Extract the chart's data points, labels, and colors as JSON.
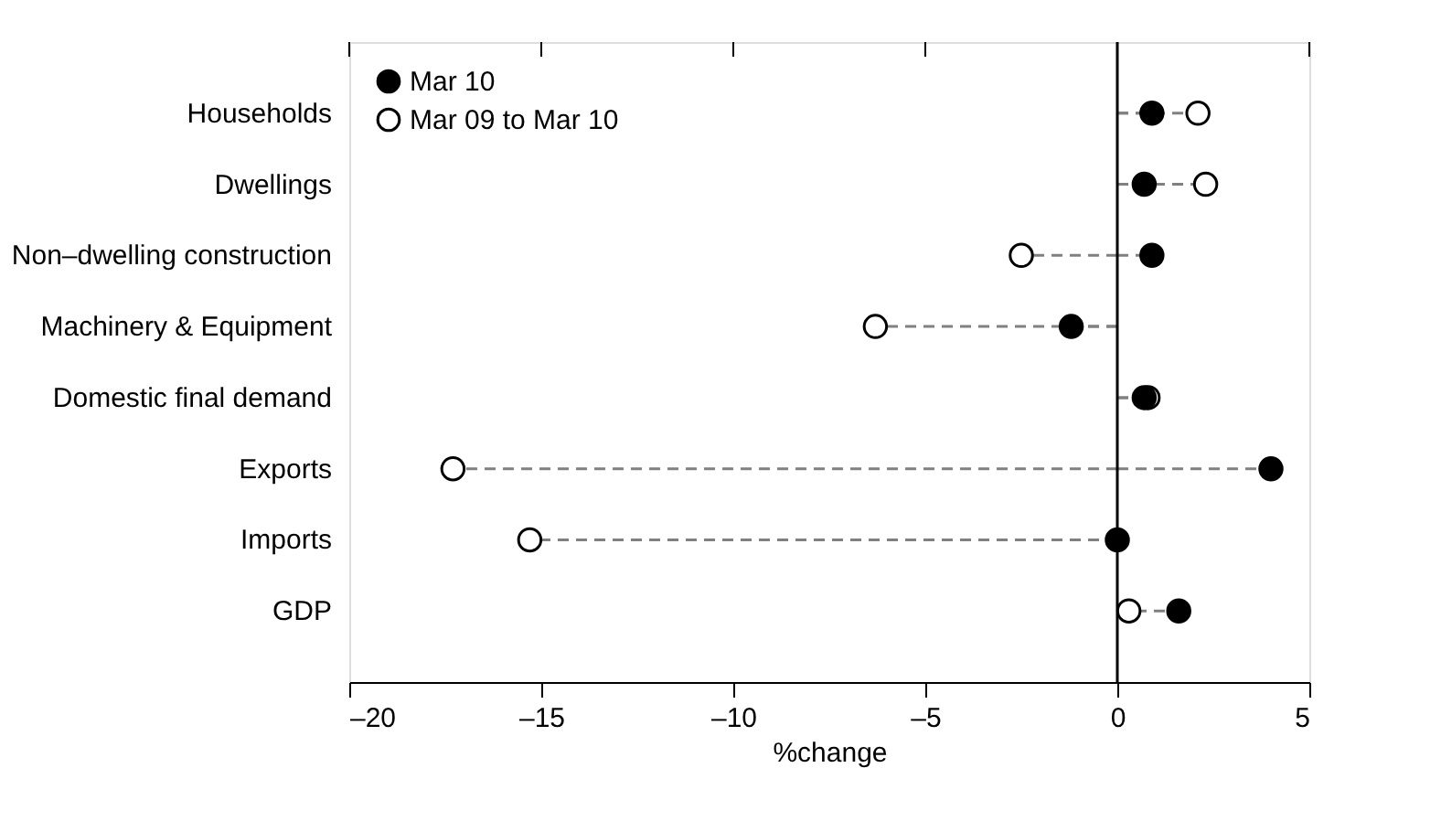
{
  "chart_data": {
    "type": "lollipop",
    "orientation": "horizontal",
    "xlabel": "%change",
    "categories": [
      "Households",
      "Dwellings",
      "Non–dwelling construction",
      "Machinery & Equipment",
      "Domestic final demand",
      "Exports",
      "Imports",
      "GDP"
    ],
    "series": [
      {
        "name": "Mar 09  to Mar 10",
        "color": "#ffffff",
        "values": [
          2.1,
          2.3,
          -2.5,
          -6.3,
          0.8,
          -17.3,
          -15.3,
          0.3
        ]
      },
      {
        "name": "Mar 10",
        "color": "#000000",
        "values": [
          0.9,
          0.7,
          0.9,
          -1.2,
          0.7,
          4.0,
          0.0,
          1.6
        ]
      }
    ],
    "xlim": [
      -20,
      5
    ],
    "xticks": [
      {
        "value": -20,
        "label": "–20"
      },
      {
        "value": -15,
        "label": "–15"
      },
      {
        "value": -10,
        "label": "–10"
      },
      {
        "value": -5,
        "label": "–5"
      },
      0,
      5
    ],
    "ref_lines": [
      {
        "axis": "x",
        "value": 0,
        "label": null,
        "color": "#000000"
      }
    ],
    "marker": "circle",
    "line_style": "dashed",
    "legend": "top left",
    "grid": false
  }
}
